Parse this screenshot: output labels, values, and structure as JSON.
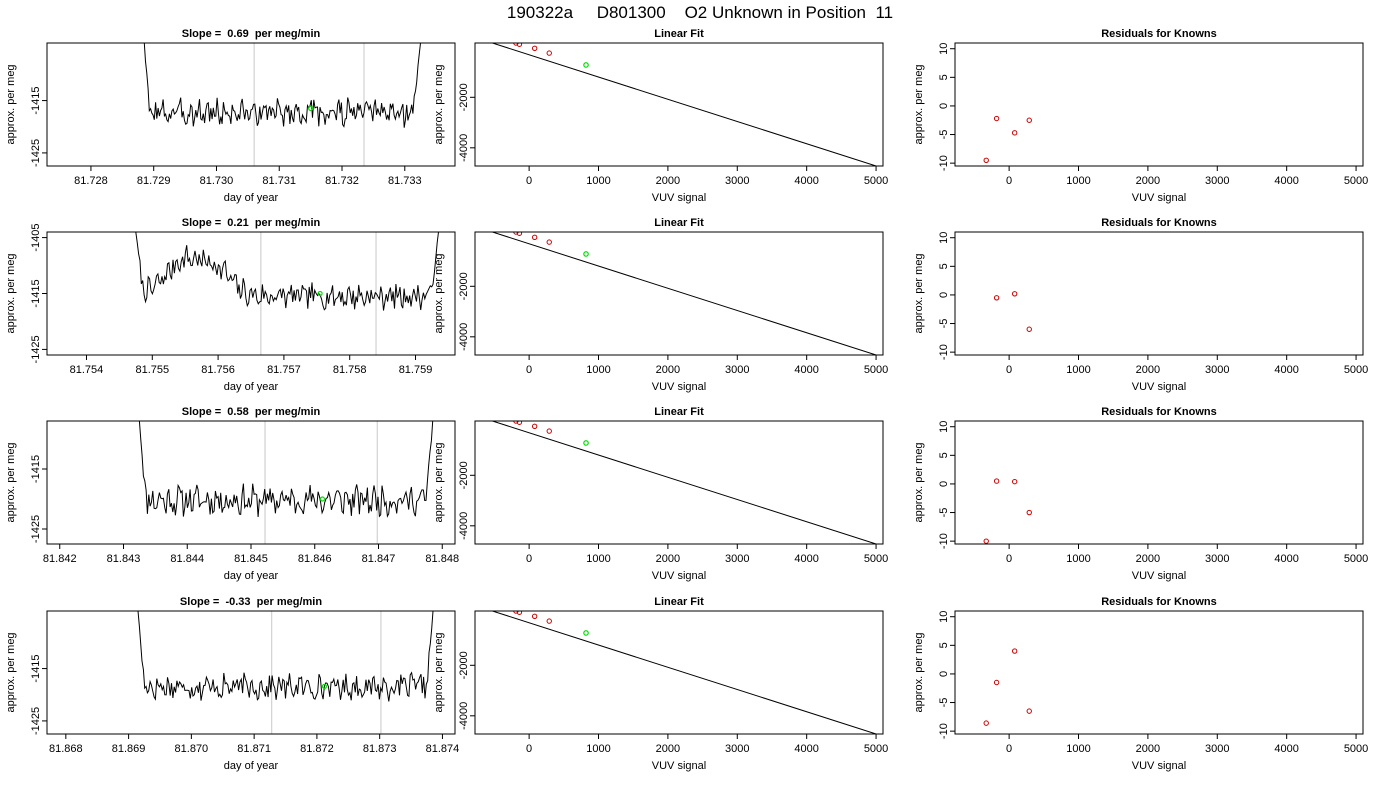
{
  "page_title": "190322a     D801300    O2 Unknown in Position  11",
  "colors": {
    "axes": "#000000",
    "trace": "#000000",
    "vline": "#c8c8c8",
    "marker": "#00dd00",
    "residual": "#cc0000"
  },
  "chart_data": [
    {
      "type": "line",
      "title": "Slope =  0.69  per meg/min",
      "xlabel": "day of year",
      "ylabel": "approx. per meg",
      "xlim": [
        81.7273,
        81.7338
      ],
      "ylim": [
        -1427.5,
        -1404
      ],
      "xticks": [
        "81.728",
        "81.729",
        "81.730",
        "81.731",
        "81.732",
        "81.733"
      ],
      "yticks": [
        "-1415",
        "-1425"
      ],
      "trace": {
        "x_start": 81.72885,
        "x_end": 81.73325,
        "y_start": -1404,
        "y_end": -1404,
        "base": -1417.3,
        "amp": 2.2,
        "left_x": 81.72895,
        "right_x": 81.7331,
        "seed": 3
      },
      "vlines": [
        81.7306,
        81.73235
      ],
      "marker": {
        "x": 81.7315,
        "y": -1416.5
      }
    },
    {
      "type": "line",
      "title": "Linear Fit",
      "xlabel": "VUV signal",
      "ylabel": "approx. per meg",
      "xlim": [
        -780,
        5100
      ],
      "ylim": [
        -4720,
        150
      ],
      "xticks": [
        "0",
        "1000",
        "2000",
        "3000",
        "4000",
        "5000"
      ],
      "yticks": [
        "-2000",
        "-4000"
      ],
      "line": {
        "x": [
          -700,
          5000
        ],
        "y": [
          300,
          -4720
        ]
      },
      "points": [
        {
          "x": -320,
          "y": 270
        },
        {
          "x": -190,
          "y": 150
        },
        {
          "x": -140,
          "y": 100
        },
        {
          "x": 80,
          "y": -60
        },
        {
          "x": 290,
          "y": -250
        }
      ],
      "marker": {
        "x": 820,
        "y": -720
      }
    },
    {
      "type": "scatter",
      "title": "Residuals for Knowns",
      "xlabel": "VUV signal",
      "ylabel": "approx. per meg",
      "xlim": [
        -780,
        5100
      ],
      "ylim": [
        -10.5,
        11
      ],
      "xticks": [
        "0",
        "1000",
        "2000",
        "3000",
        "4000",
        "5000"
      ],
      "yticks": [
        "-10",
        "-5",
        "0",
        "5",
        "10"
      ],
      "points": [
        {
          "x": -330,
          "y": -9.5
        },
        {
          "x": -180,
          "y": -2.2
        },
        {
          "x": 80,
          "y": -4.7
        },
        {
          "x": 290,
          "y": -2.5
        }
      ]
    },
    {
      "type": "line",
      "title": "Slope =  0.21  per meg/min",
      "xlabel": "day of year",
      "ylabel": "approx. per meg",
      "xlim": [
        81.7534,
        81.7596
      ],
      "ylim": [
        -1426,
        -1404
      ],
      "xticks": [
        "81.754",
        "81.755",
        "81.756",
        "81.757",
        "81.758",
        "81.759"
      ],
      "yticks": [
        "-1405",
        "-1415",
        "-1425"
      ],
      "trace": {
        "x_start": 81.75475,
        "x_end": 81.75935,
        "y_start": -1404,
        "y_end": -1404,
        "base": -1415.5,
        "amp": 1.9,
        "left_x": 81.7549,
        "right_x": 81.7592,
        "seed": 7,
        "bumps": [
          {
            "x": 81.7555,
            "h": 6.5,
            "w": 0.0004
          },
          {
            "x": 81.756,
            "h": 4.0,
            "w": 0.0003
          }
        ]
      },
      "vlines": [
        81.75665,
        81.7584
      ],
      "marker": {
        "x": 81.75755,
        "y": -1415.0
      }
    },
    {
      "type": "line",
      "title": "Linear Fit",
      "xlabel": "VUV signal",
      "ylabel": "approx. per meg",
      "xlim": [
        -780,
        5100
      ],
      "ylim": [
        -4720,
        150
      ],
      "xticks": [
        "0",
        "1000",
        "2000",
        "3000",
        "4000",
        "5000"
      ],
      "yticks": [
        "-2000",
        "-4000"
      ],
      "line": {
        "x": [
          -700,
          5000
        ],
        "y": [
          300,
          -4720
        ]
      },
      "points": [
        {
          "x": -320,
          "y": 270
        },
        {
          "x": -190,
          "y": 150
        },
        {
          "x": -140,
          "y": 100
        },
        {
          "x": 80,
          "y": -60
        },
        {
          "x": 290,
          "y": -250
        }
      ],
      "marker": {
        "x": 820,
        "y": -720
      }
    },
    {
      "type": "scatter",
      "title": "Residuals for Knowns",
      "xlabel": "VUV signal",
      "ylabel": "approx. per meg",
      "xlim": [
        -780,
        5100
      ],
      "ylim": [
        -10.5,
        11
      ],
      "xticks": [
        "0",
        "1000",
        "2000",
        "3000",
        "4000",
        "5000"
      ],
      "yticks": [
        "-10",
        "-5",
        "0",
        "5",
        "10"
      ],
      "points": [
        {
          "x": -180,
          "y": -0.5
        },
        {
          "x": 80,
          "y": 0.2
        },
        {
          "x": 290,
          "y": -6.0
        }
      ]
    },
    {
      "type": "line",
      "title": "Slope =  0.58  per meg/min",
      "xlabel": "day of year",
      "ylabel": "approx. per meg",
      "xlim": [
        81.8418,
        81.8482
      ],
      "ylim": [
        -1427.5,
        -1407
      ],
      "xticks": [
        "81.842",
        "81.843",
        "81.844",
        "81.845",
        "81.846",
        "81.847",
        "81.848"
      ],
      "yticks": [
        "-1415",
        "-1425"
      ],
      "trace": {
        "x_start": 81.84325,
        "x_end": 81.84785,
        "y_start": -1407,
        "y_end": -1407,
        "base": -1420.2,
        "amp": 2.1,
        "left_x": 81.84338,
        "right_x": 81.84772,
        "seed": 11
      },
      "vlines": [
        81.84522,
        81.84698
      ],
      "marker": {
        "x": 81.84612,
        "y": -1420.0
      }
    },
    {
      "type": "line",
      "title": "Linear Fit",
      "xlabel": "VUV signal",
      "ylabel": "approx. per meg",
      "xlim": [
        -780,
        5100
      ],
      "ylim": [
        -4720,
        150
      ],
      "xticks": [
        "0",
        "1000",
        "2000",
        "3000",
        "4000",
        "5000"
      ],
      "yticks": [
        "-2000",
        "-4000"
      ],
      "line": {
        "x": [
          -700,
          5000
        ],
        "y": [
          300,
          -4720
        ]
      },
      "points": [
        {
          "x": -320,
          "y": 270
        },
        {
          "x": -190,
          "y": 150
        },
        {
          "x": -140,
          "y": 100
        },
        {
          "x": 80,
          "y": -60
        },
        {
          "x": 290,
          "y": -250
        }
      ],
      "marker": {
        "x": 820,
        "y": -720
      }
    },
    {
      "type": "scatter",
      "title": "Residuals for Knowns",
      "xlabel": "VUV signal",
      "ylabel": "approx. per meg",
      "xlim": [
        -780,
        5100
      ],
      "ylim": [
        -10.5,
        11
      ],
      "xticks": [
        "0",
        "1000",
        "2000",
        "3000",
        "4000",
        "5000"
      ],
      "yticks": [
        "-10",
        "-5",
        "0",
        "5",
        "10"
      ],
      "points": [
        {
          "x": -330,
          "y": -10.0
        },
        {
          "x": -180,
          "y": 0.5
        },
        {
          "x": 80,
          "y": 0.4
        },
        {
          "x": 290,
          "y": -5.0
        }
      ]
    },
    {
      "type": "line",
      "title": "Slope =  -0.33  per meg/min",
      "xlabel": "day of year",
      "ylabel": "approx. per meg",
      "xlim": [
        81.8677,
        81.8742
      ],
      "ylim": [
        -1427.5,
        -1404
      ],
      "xticks": [
        "81.868",
        "81.869",
        "81.870",
        "81.871",
        "81.872",
        "81.873",
        "81.874"
      ],
      "yticks": [
        "-1415",
        "-1425"
      ],
      "trace": {
        "x_start": 81.86915,
        "x_end": 81.87385,
        "y_start": -1404,
        "y_end": -1404,
        "base": -1418.5,
        "amp": 2.0,
        "left_x": 81.86928,
        "right_x": 81.87372,
        "seed": 17
      },
      "vlines": [
        81.87128,
        81.87302
      ],
      "marker": {
        "x": 81.87212,
        "y": -1418.4
      }
    },
    {
      "type": "line",
      "title": "Linear Fit",
      "xlabel": "VUV signal",
      "ylabel": "approx. per meg",
      "xlim": [
        -780,
        5100
      ],
      "ylim": [
        -4720,
        150
      ],
      "xticks": [
        "0",
        "1000",
        "2000",
        "3000",
        "4000",
        "5000"
      ],
      "yticks": [
        "-2000",
        "-4000"
      ],
      "line": {
        "x": [
          -700,
          5000
        ],
        "y": [
          300,
          -4720
        ]
      },
      "points": [
        {
          "x": -320,
          "y": 270
        },
        {
          "x": -190,
          "y": 150
        },
        {
          "x": -140,
          "y": 100
        },
        {
          "x": 80,
          "y": -60
        },
        {
          "x": 290,
          "y": -250
        }
      ],
      "marker": {
        "x": 820,
        "y": -720
      }
    },
    {
      "type": "scatter",
      "title": "Residuals for Knowns",
      "xlabel": "VUV signal",
      "ylabel": "approx. per meg",
      "xlim": [
        -780,
        5100
      ],
      "ylim": [
        -10.5,
        11
      ],
      "xticks": [
        "0",
        "1000",
        "2000",
        "3000",
        "4000",
        "5000"
      ],
      "yticks": [
        "-10",
        "-5",
        "0",
        "5",
        "10"
      ],
      "points": [
        {
          "x": -330,
          "y": -8.6
        },
        {
          "x": -180,
          "y": -1.5
        },
        {
          "x": 80,
          "y": 4.0
        },
        {
          "x": 290,
          "y": -6.5
        }
      ]
    }
  ]
}
